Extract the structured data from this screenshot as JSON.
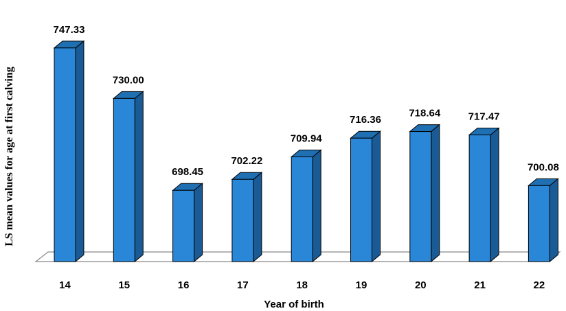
{
  "chart_data": {
    "type": "bar",
    "title": "",
    "xlabel": "Year of birth",
    "ylabel": "LS mean values for age at first calving",
    "categories": [
      "14",
      "15",
      "16",
      "17",
      "18",
      "19",
      "20",
      "21",
      "22"
    ],
    "values": [
      747.33,
      730.0,
      698.45,
      702.22,
      709.94,
      716.36,
      718.64,
      717.47,
      700.08
    ],
    "value_labels": [
      "747.33",
      "730.00",
      "698.45",
      "702.22",
      "709.94",
      "716.36",
      "718.64",
      "717.47",
      "700.08"
    ],
    "ylim": [
      674,
      752
    ],
    "grid": false,
    "legend": "none",
    "style": "3d-column",
    "colors": {
      "bar_front": "#2a86d6",
      "bar_top": "#1f6fb3",
      "bar_side": "#1a5a95",
      "floor": "#ffffff",
      "outline": "#000000"
    }
  }
}
